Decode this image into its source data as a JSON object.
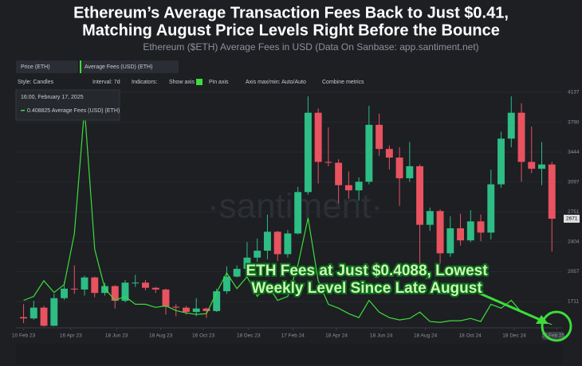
{
  "header": {
    "title_lines": [
      "Ethereum’s Average Transaction Fees Back to Just $0.41,",
      "Matching August Price Levels Right Before the Bounce"
    ],
    "subtitle": "Ethereum ($ETH) Average Fees in USD (Data On Sanbase: app.santiment.net)"
  },
  "toolbar": {
    "style": "Style: Candles",
    "interval": "Interval: 7d",
    "indicators": "Indicators:",
    "show_axis": "Show axis",
    "pin_axis": "Pin axis",
    "axis_minmax": "Axis max/min: Auto/Auto",
    "combine": "Combine metrics"
  },
  "tooltip": {
    "date": "16:00, February 17, 2025",
    "entry": "0.408825 Average Fees (USD) (ETH)"
  },
  "chart_data": {
    "type": "candlestick",
    "price_name": "Price (ETH)",
    "up_color": "#2dbd85",
    "down_color": "#e9525f",
    "watermark": "·santiment·",
    "annotation_lines": [
      "ETH Fees at Just $0.4088, Lowest",
      "Weekly Level Since Late August"
    ],
    "x": [
      0,
      2,
      4,
      6,
      8,
      10,
      12,
      14,
      16,
      18,
      20,
      22,
      24,
      26,
      28,
      30,
      32,
      34,
      36,
      38,
      40,
      42,
      44,
      46,
      48,
      50,
      52,
      54,
      56,
      58,
      60,
      62,
      64,
      66,
      68,
      70,
      72,
      74,
      76,
      78,
      80,
      82,
      84,
      86,
      88,
      90,
      92,
      94,
      96,
      98,
      100,
      102,
      104
    ],
    "open": [
      1530,
      1515,
      1640,
      1430,
      1750,
      1860,
      1850,
      1990,
      1810,
      1890,
      1720,
      1930,
      1930,
      1870,
      1850,
      1650,
      1640,
      1590,
      1630,
      1600,
      1830,
      2000,
      2090,
      2220,
      2300,
      2520,
      2260,
      2500,
      2980,
      3900,
      3330,
      3320,
      3060,
      3000,
      3100,
      3760,
      3480,
      3380,
      3140,
      3280,
      2600,
      2760,
      2270,
      2560,
      2420,
      2640,
      2510,
      3070,
      3600,
      3900,
      3330,
      3250,
      3300
    ],
    "high": [
      1680,
      1720,
      1660,
      1800,
      1940,
      2130,
      2010,
      2000,
      1930,
      1900,
      1960,
      2020,
      1960,
      1880,
      1860,
      1680,
      1660,
      1750,
      1640,
      1860,
      2120,
      2130,
      2400,
      2440,
      2720,
      2530,
      2540,
      3040,
      4090,
      3950,
      3730,
      3360,
      3220,
      3150,
      3980,
      3890,
      3520,
      3500,
      3560,
      3300,
      2800,
      2780,
      2700,
      2730,
      2770,
      2720,
      3240,
      3680,
      4090,
      4010,
      3740,
      3560,
      3330
    ],
    "low": [
      1460,
      1500,
      1420,
      1425,
      1730,
      1800,
      1780,
      1760,
      1780,
      1630,
      1700,
      1880,
      1840,
      1810,
      1560,
      1540,
      1560,
      1540,
      1520,
      1590,
      1800,
      1990,
      2080,
      2170,
      2200,
      2180,
      2220,
      2490,
      2950,
      3080,
      3280,
      2850,
      2900,
      2880,
      3070,
      3400,
      3240,
      2820,
      3100,
      2110,
      2530,
      2150,
      2230,
      2360,
      2400,
      2410,
      2430,
      3030,
      3500,
      3100,
      3200,
      3060,
      2290
    ],
    "close": [
      1515,
      1640,
      1430,
      1750,
      1860,
      1850,
      1990,
      1810,
      1890,
      1720,
      1930,
      1930,
      1870,
      1850,
      1650,
      1640,
      1590,
      1630,
      1600,
      1830,
      2000,
      2090,
      2220,
      2300,
      2520,
      2260,
      2500,
      2980,
      3900,
      3330,
      3320,
      3060,
      3000,
      3100,
      3760,
      3480,
      3380,
      3140,
      3280,
      2600,
      2760,
      2270,
      2560,
      2420,
      2640,
      2510,
      3070,
      3600,
      3900,
      3330,
      3250,
      3300,
      2671
    ],
    "series": [
      {
        "name": "Average Fees (USD) (ETH)",
        "color": "#3ddc3a",
        "axis": "y2",
        "values": [
          3.5,
          4.0,
          6.0,
          4.5,
          5.5,
          12,
          28,
          10,
          5,
          3.5,
          4,
          3,
          3,
          2.6,
          2.8,
          2.2,
          1.9,
          1.7,
          1.8,
          4.5,
          7,
          5,
          6.5,
          4,
          5.5,
          3.5,
          4,
          8,
          14,
          6,
          3,
          2.5,
          1.8,
          1.3,
          3.5,
          2,
          1.3,
          1.0,
          1.2,
          2.0,
          0.8,
          0.7,
          0.9,
          0.9,
          1.2,
          0.8,
          3.0,
          2.5,
          3.5,
          2.0,
          1.5,
          0.9,
          0.4088
        ]
      }
    ],
    "xlim": [
      -1.5,
      106
    ],
    "xticks": [
      {
        "value": 0,
        "label": "10 Feb 23"
      },
      {
        "value": 9.3,
        "label": "16 Apr 23"
      },
      {
        "value": 18.3,
        "label": "18 Jun 23"
      },
      {
        "value": 27,
        "label": "18 Aug 23"
      },
      {
        "value": 35.4,
        "label": "16 Oct 23"
      },
      {
        "value": 44.3,
        "label": "18 Dec 23"
      },
      {
        "value": 53,
        "label": "17 Feb 24"
      },
      {
        "value": 61.6,
        "label": "18 Apr 24"
      },
      {
        "value": 70.4,
        "label": "18 Jun 24"
      },
      {
        "value": 79.1,
        "label": "18 Aug 24"
      },
      {
        "value": 87.9,
        "label": "18 Oct 24"
      },
      {
        "value": 96.6,
        "label": "18 Dec 24"
      },
      {
        "value": 105,
        "label": "17 Feb 25"
      }
    ],
    "ylim": [
      1406,
      4137
    ],
    "yticks": [
      4137,
      3790,
      3444,
      3097,
      2751,
      2404,
      2057,
      1711
    ],
    "y2lim": [
      0,
      30
    ]
  }
}
